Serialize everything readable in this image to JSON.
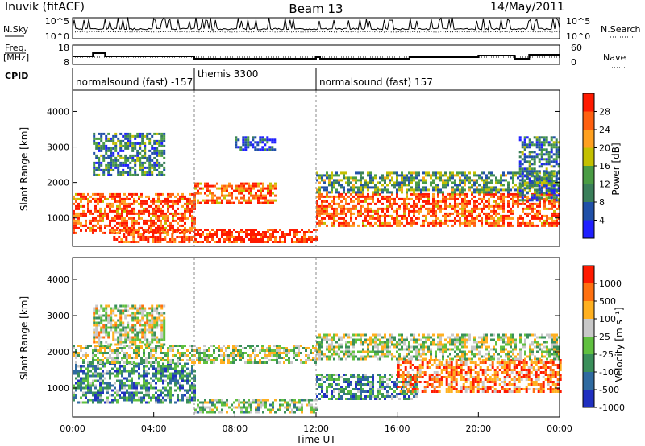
{
  "header": {
    "station": "Inuvik (fitACF)",
    "beam": "Beam 13",
    "date": "14/May/2011"
  },
  "noise_panel": {
    "left_label": "N.Sky",
    "right_label": "N.Search",
    "left_ticks": [
      "10^5",
      "10^0"
    ],
    "right_ticks": [
      "10^5",
      "10^0"
    ]
  },
  "freq_panel": {
    "left_label_line1": "Freq.",
    "left_label_line2": "[MHz]",
    "right_label": "Nave",
    "left_ticks": [
      "18",
      "8"
    ],
    "right_ticks": [
      "60",
      "0"
    ]
  },
  "cpid": {
    "label": "CPID",
    "segments": [
      {
        "text": "normalsound (fast) -157",
        "start": 0,
        "end": 6
      },
      {
        "text": "themis 3300",
        "start": 6,
        "end": 12
      },
      {
        "text": "normalsound (fast) 157",
        "start": 12,
        "end": 24
      }
    ]
  },
  "chart_data": [
    {
      "type": "heatmap",
      "quantity": "Power",
      "ylabel": "Slant Range [km]",
      "xlim_hours": [
        0,
        24
      ],
      "ylim_km": [
        200,
        4600
      ],
      "yticks": [
        1000,
        2000,
        3000,
        4000
      ],
      "colorbar": {
        "label": "Power [dB]",
        "ticks": [
          "28",
          "24",
          "20",
          "16",
          "12",
          "8",
          "4"
        ],
        "colors": [
          "#2020ff",
          "#2050a8",
          "#3a7f5a",
          "#4a9c44",
          "#c4c000",
          "#ffa020",
          "#ff6010",
          "#ff1a00"
        ]
      },
      "regions": [
        {
          "t0": 0.0,
          "t1": 6.0,
          "r0": 600,
          "r1": 1700,
          "level": 0.85
        },
        {
          "t0": 2.0,
          "t1": 6.0,
          "r0": 300,
          "r1": 700,
          "level": 0.9
        },
        {
          "t0": 6.0,
          "t1": 12.0,
          "r0": 300,
          "r1": 700,
          "level": 0.95
        },
        {
          "t0": 6.0,
          "t1": 10.0,
          "r0": 1400,
          "r1": 2000,
          "level": 0.8
        },
        {
          "t0": 12.0,
          "t1": 24.0,
          "r0": 800,
          "r1": 1700,
          "level": 0.85
        },
        {
          "t0": 12.0,
          "t1": 24.0,
          "r0": 1700,
          "r1": 2300,
          "level": 0.4
        },
        {
          "t0": 1.0,
          "t1": 4.5,
          "r0": 2200,
          "r1": 3400,
          "level": 0.3
        },
        {
          "t0": 8.0,
          "t1": 10.0,
          "r0": 2900,
          "r1": 3300,
          "level": 0.2
        },
        {
          "t0": 22.0,
          "t1": 24.0,
          "r0": 1500,
          "r1": 3300,
          "level": 0.3
        }
      ]
    },
    {
      "type": "heatmap",
      "quantity": "Velocity",
      "ylabel": "Slant Range [km]",
      "xlabel": "Time UT",
      "xticks": [
        "00:00",
        "04:00",
        "08:00",
        "12:00",
        "16:00",
        "20:00",
        "00:00"
      ],
      "xlim_hours": [
        0,
        24
      ],
      "ylim_km": [
        200,
        4600
      ],
      "yticks": [
        1000,
        2000,
        3000,
        4000
      ],
      "colorbar": {
        "label": "Velocity [m s⁻¹]",
        "ticks": [
          "1000",
          "500",
          "100",
          "25",
          "-25",
          "-100",
          "-500",
          "-1000"
        ],
        "colors": [
          "#2030c0",
          "#2f6aa0",
          "#3a8f5a",
          "#60c040",
          "#c8c8c8",
          "#ffb020",
          "#ff7010",
          "#ff1a00"
        ]
      },
      "regions": [
        {
          "t0": 0.0,
          "t1": 6.0,
          "r0": 600,
          "r1": 1700,
          "level": 0.3
        },
        {
          "t0": 0.0,
          "t1": 12.0,
          "r0": 1700,
          "r1": 2200,
          "level": 0.5
        },
        {
          "t0": 6.0,
          "t1": 12.0,
          "r0": 300,
          "r1": 700,
          "level": 0.45
        },
        {
          "t0": 12.0,
          "t1": 17.0,
          "r0": 700,
          "r1": 1400,
          "level": 0.3
        },
        {
          "t0": 16.0,
          "t1": 24.0,
          "r0": 900,
          "r1": 1800,
          "level": 0.8
        },
        {
          "t0": 12.0,
          "t1": 24.0,
          "r0": 1800,
          "r1": 2500,
          "level": 0.5
        },
        {
          "t0": 1.0,
          "t1": 4.5,
          "r0": 2200,
          "r1": 3300,
          "level": 0.55
        }
      ]
    }
  ]
}
